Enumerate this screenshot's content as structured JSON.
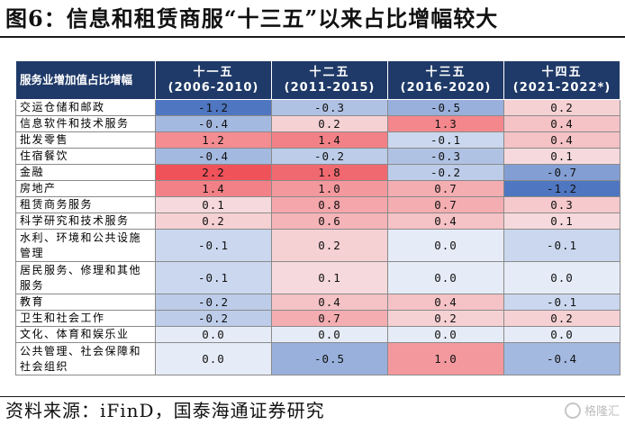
{
  "title": "图6：信息和租赁商服“十三五”以来占比增幅较大",
  "source": "资料来源：iFinD，国泰海通证券研究",
  "watermark": "格隆汇",
  "colors": {
    "header_bg": "#1f3a68",
    "strong_red": "#ef5a5a",
    "light_red": "#f9c2c2",
    "strong_blue": "#5b7fc4",
    "light_blue": "#c9d7ee"
  },
  "chart_data": {
    "type": "table",
    "corner_header": "服务业增加值占比增幅",
    "columns": [
      {
        "name": "十一五",
        "period": "(2006-2010)"
      },
      {
        "name": "十二五",
        "period": "(2011-2015)"
      },
      {
        "name": "十三五",
        "period": "(2016-2020)"
      },
      {
        "name": "十四五",
        "period": "(2021-2022*)"
      }
    ],
    "rows": [
      {
        "label": "交运仓储和邮政",
        "values": [
          "-1.2",
          "-0.3",
          "-0.5",
          "0.2"
        ]
      },
      {
        "label": "信息软件和技术服务",
        "values": [
          "-0.4",
          "0.2",
          "1.3",
          "0.4"
        ]
      },
      {
        "label": "批发零售",
        "values": [
          "1.2",
          "1.4",
          "-0.1",
          "0.4"
        ]
      },
      {
        "label": "住宿餐饮",
        "values": [
          "-0.4",
          "-0.2",
          "-0.3",
          "0.1"
        ]
      },
      {
        "label": "金融",
        "values": [
          "2.2",
          "1.8",
          "-0.2",
          "-0.7"
        ]
      },
      {
        "label": "房地产",
        "values": [
          "1.4",
          "1.0",
          "0.7",
          "-1.2"
        ]
      },
      {
        "label": "租赁商务服务",
        "values": [
          "0.1",
          "0.8",
          "0.7",
          "0.3"
        ]
      },
      {
        "label": "科学研究和技术服务",
        "values": [
          "0.2",
          "0.6",
          "0.4",
          "0.1"
        ]
      },
      {
        "label": "水利、环境和公共设施管理",
        "values": [
          "-0.1",
          "0.2",
          "0.0",
          "-0.1"
        ]
      },
      {
        "label": "居民服务、修理和其他服务",
        "values": [
          "-0.1",
          "0.1",
          "0.0",
          "0.0"
        ]
      },
      {
        "label": "教育",
        "values": [
          "-0.2",
          "0.4",
          "0.4",
          "-0.1"
        ]
      },
      {
        "label": "卫生和社会工作",
        "values": [
          "-0.2",
          "0.7",
          "0.2",
          "0.2"
        ]
      },
      {
        "label": "文化、体育和娱乐业",
        "values": [
          "0.0",
          "0.0",
          "0.0",
          "0.0"
        ]
      },
      {
        "label": "公共管理、社会保障和社会组织",
        "values": [
          "0.0",
          "-0.5",
          "1.0",
          "-0.4"
        ]
      }
    ]
  }
}
